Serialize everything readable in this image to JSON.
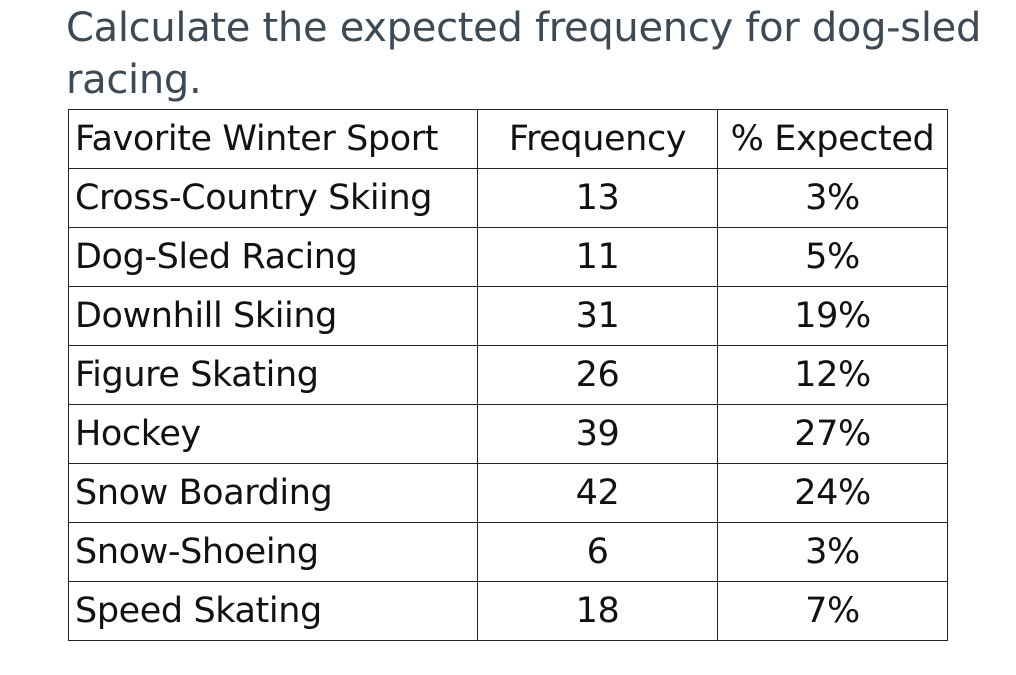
{
  "question": "Calculate the expected frequency for dog-sled racing.",
  "table": {
    "headers": [
      "Favorite Winter Sport",
      "Frequency",
      "% Expected"
    ],
    "rows": [
      {
        "sport": "Cross-Country Skiing",
        "frequency": "13",
        "expected": "3%"
      },
      {
        "sport": "Dog-Sled Racing",
        "frequency": "11",
        "expected": "5%"
      },
      {
        "sport": "Downhill Skiing",
        "frequency": "31",
        "expected": "19%"
      },
      {
        "sport": "Figure Skating",
        "frequency": "26",
        "expected": "12%"
      },
      {
        "sport": "Hockey",
        "frequency": "39",
        "expected": "27%"
      },
      {
        "sport": "Snow Boarding",
        "frequency": "42",
        "expected": "24%"
      },
      {
        "sport": "Snow-Shoeing",
        "frequency": "6",
        "expected": "3%"
      },
      {
        "sport": "Speed Skating",
        "frequency": "18",
        "expected": "7%"
      }
    ]
  }
}
